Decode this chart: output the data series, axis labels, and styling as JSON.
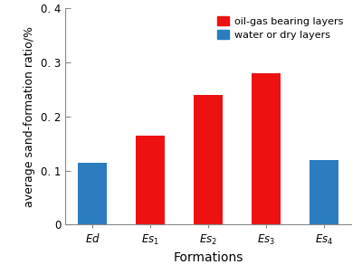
{
  "categories": [
    "Ed",
    "Es1",
    "Es2",
    "Es3",
    "Es4"
  ],
  "category_labels": [
    "$\\mathit{Ed}$",
    "$\\mathit{Es}_{1}$",
    "$\\mathit{Es}_{2}$",
    "$\\mathit{Es}_{3}$",
    "$\\mathit{Es}_{4}$"
  ],
  "values": [
    0.115,
    0.165,
    0.24,
    0.28,
    0.12
  ],
  "bar_colors": [
    "#2B7DC0",
    "#EE1111",
    "#EE1111",
    "#EE1111",
    "#2B7DC0"
  ],
  "legend_labels": [
    "oil-gas bearing layers",
    "water or dry layers"
  ],
  "legend_colors": [
    "#EE1111",
    "#2B7DC0"
  ],
  "ylabel": "average sand-formation ratio/%",
  "xlabel": "Formations",
  "ylim": [
    0,
    0.4
  ],
  "yticks": [
    0,
    0.1,
    0.2,
    0.3,
    0.4
  ],
  "ytick_labels": [
    "0",
    "0. 1",
    "0. 2",
    "0. 3",
    "0. 4"
  ],
  "background_color": "#ffffff",
  "bar_width": 0.5,
  "label_fontsize": 9,
  "tick_fontsize": 8.5,
  "legend_fontsize": 8,
  "spine_color": "#888888"
}
